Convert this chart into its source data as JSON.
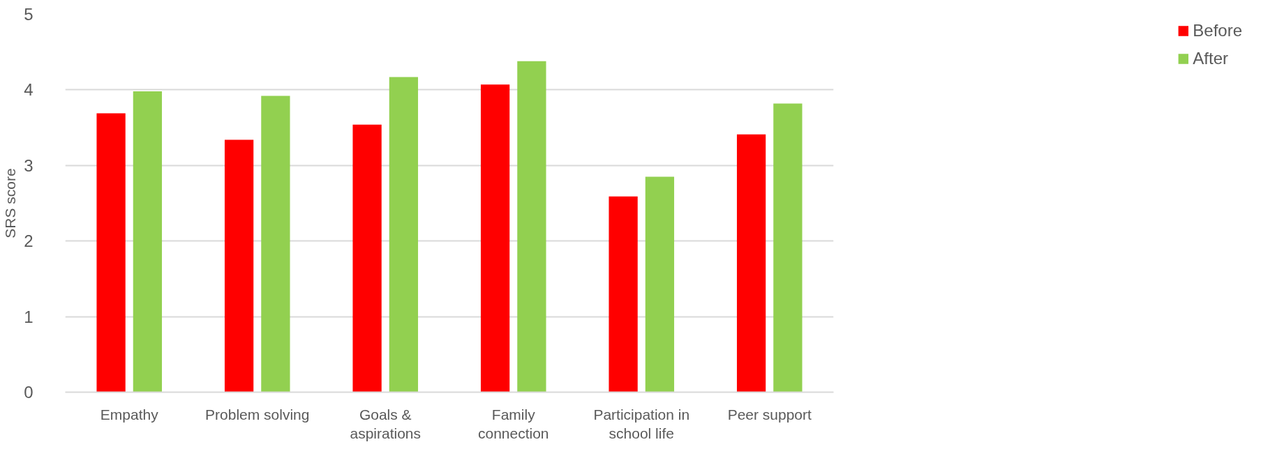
{
  "chart_data": {
    "type": "bar",
    "ylabel": "SRS score",
    "categories": [
      "Empathy",
      "Problem solving",
      "Goals & aspirations",
      "Family connection",
      "Participation in school life",
      "Peer support"
    ],
    "series": [
      {
        "name": "Before",
        "color": "#ff0000",
        "values": [
          3.69,
          3.34,
          3.54,
          4.07,
          2.59,
          3.41
        ]
      },
      {
        "name": "After",
        "color": "#92d050",
        "values": [
          3.98,
          3.92,
          4.17,
          4.38,
          2.85,
          3.82
        ]
      }
    ],
    "ylim": [
      0,
      5
    ],
    "yticks": [
      0,
      1,
      2,
      3,
      4,
      5
    ],
    "grid": "y",
    "legend": "right"
  }
}
